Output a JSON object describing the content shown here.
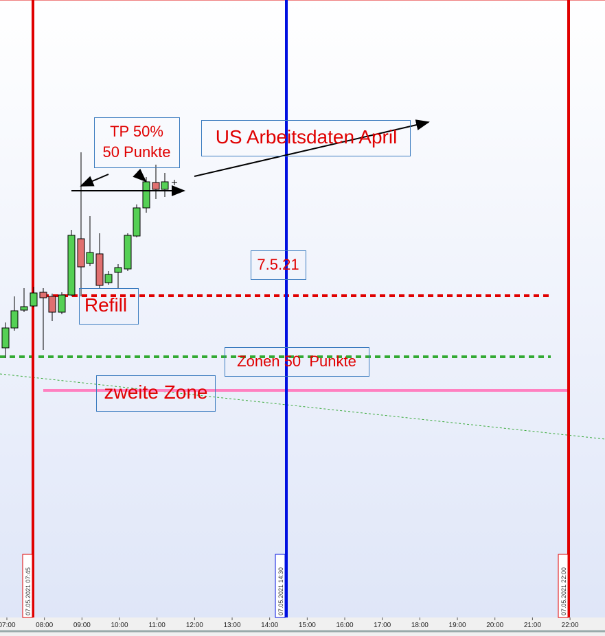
{
  "annotations": {
    "tp_line1": "TP 50%",
    "tp_line2": "50 Punkte",
    "us_data": "US Arbeitsdaten April",
    "date": "7.5.21",
    "refill": "Refill",
    "zonen": "Zonen 50  Punkte",
    "zweite": "zweite Zone"
  },
  "vertical_lines": [
    "07.05.2021 07:45",
    "07.05.2021 14:30",
    "07.05.2021 22:00"
  ],
  "time_axis": [
    "07:00",
    "08:00",
    "09:00",
    "10:00",
    "11:00",
    "12:00",
    "13:00",
    "14:00",
    "15:00",
    "16:00",
    "17:00",
    "18:00",
    "19:00",
    "20:00",
    "21:00",
    "22:00"
  ]
}
